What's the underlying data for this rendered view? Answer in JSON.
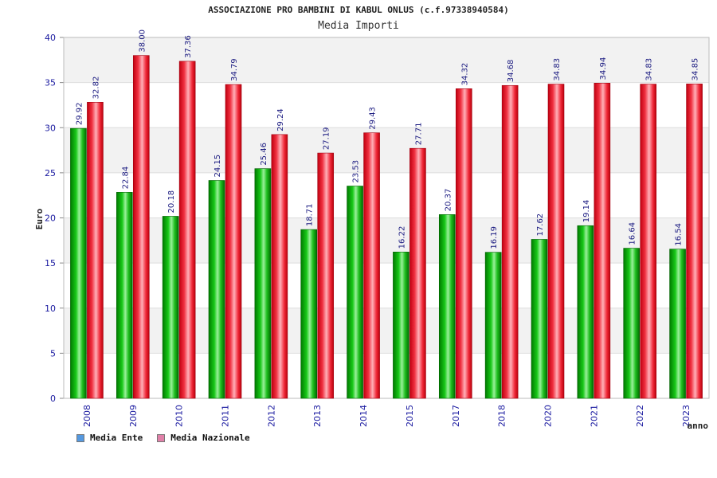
{
  "chart_data": {
    "type": "bar",
    "title": "ASSOCIAZIONE PRO BAMBINI DI KABUL ONLUS (c.f.97338940584)",
    "subtitle": "Media Importi",
    "xlabel": "anno",
    "ylabel": "Euro",
    "ylim": [
      0,
      40
    ],
    "yticks": [
      "0",
      "5",
      "10",
      "15",
      "20",
      "25",
      "30",
      "35",
      "40"
    ],
    "categories": [
      "2008",
      "2009",
      "2010",
      "2011",
      "2012",
      "2013",
      "2014",
      "2015",
      "2017",
      "2018",
      "2020",
      "2021",
      "2022",
      "2023"
    ],
    "series": [
      {
        "name": "Media Ente",
        "color": "#00a000",
        "values": [
          29.92,
          22.84,
          20.18,
          24.15,
          25.46,
          18.71,
          23.53,
          16.22,
          20.37,
          16.19,
          17.62,
          19.14,
          16.64,
          16.54
        ],
        "labels": [
          "29.92",
          "22.84",
          "20.18",
          "24.15",
          "25.46",
          "18.71",
          "23.53",
          "16.22",
          "20.37",
          "16.19",
          "17.62",
          "19.14",
          "16.64",
          "16.54"
        ]
      },
      {
        "name": "Media Nazionale",
        "color": "#e8202a",
        "values": [
          32.82,
          38.0,
          37.36,
          34.79,
          29.24,
          27.19,
          29.43,
          27.71,
          34.32,
          34.68,
          34.83,
          34.94,
          34.83,
          34.85
        ],
        "labels": [
          "32.82",
          "38.00",
          "37.36",
          "34.79",
          "29.24",
          "27.19",
          "29.43",
          "27.71",
          "34.32",
          "34.68",
          "34.83",
          "34.94",
          "34.83",
          "34.85"
        ]
      }
    ],
    "legend": {
      "placement": "bottom-left",
      "items": [
        {
          "label": "Media Ente",
          "color": "#5599e0"
        },
        {
          "label": "Media Nazionale",
          "color": "#e080a8"
        }
      ]
    },
    "grid": true
  }
}
